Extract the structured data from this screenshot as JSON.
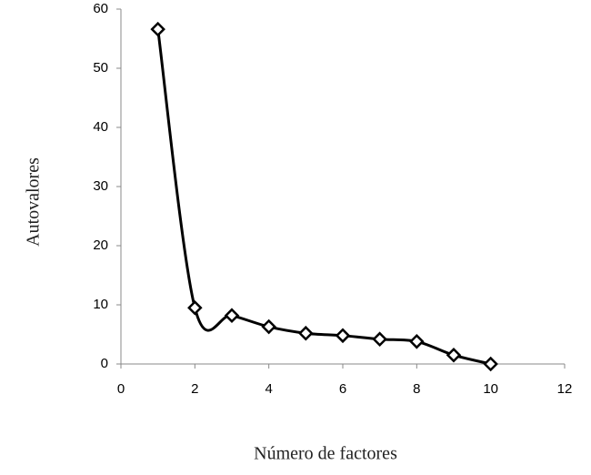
{
  "chart_data": {
    "type": "line",
    "x_label": "Número de factores",
    "y_label": "Autovalores",
    "series": [
      {
        "name": "Autovalores",
        "color": "#000000",
        "x": [
          1,
          2,
          3,
          4,
          5,
          6,
          7,
          8,
          9,
          10
        ],
        "values": [
          56.6,
          9.5,
          8.2,
          6.3,
          5.2,
          4.8,
          4.2,
          3.8,
          1.5,
          0
        ]
      }
    ],
    "xlim": [
      0,
      12
    ],
    "xticks": [
      0,
      2,
      4,
      6,
      8,
      10,
      12
    ],
    "ylim": [
      0,
      60
    ],
    "yticks": [
      0,
      10,
      20,
      30,
      40,
      50,
      60
    ],
    "grid": false,
    "smooth": true,
    "marker": "diamond"
  }
}
